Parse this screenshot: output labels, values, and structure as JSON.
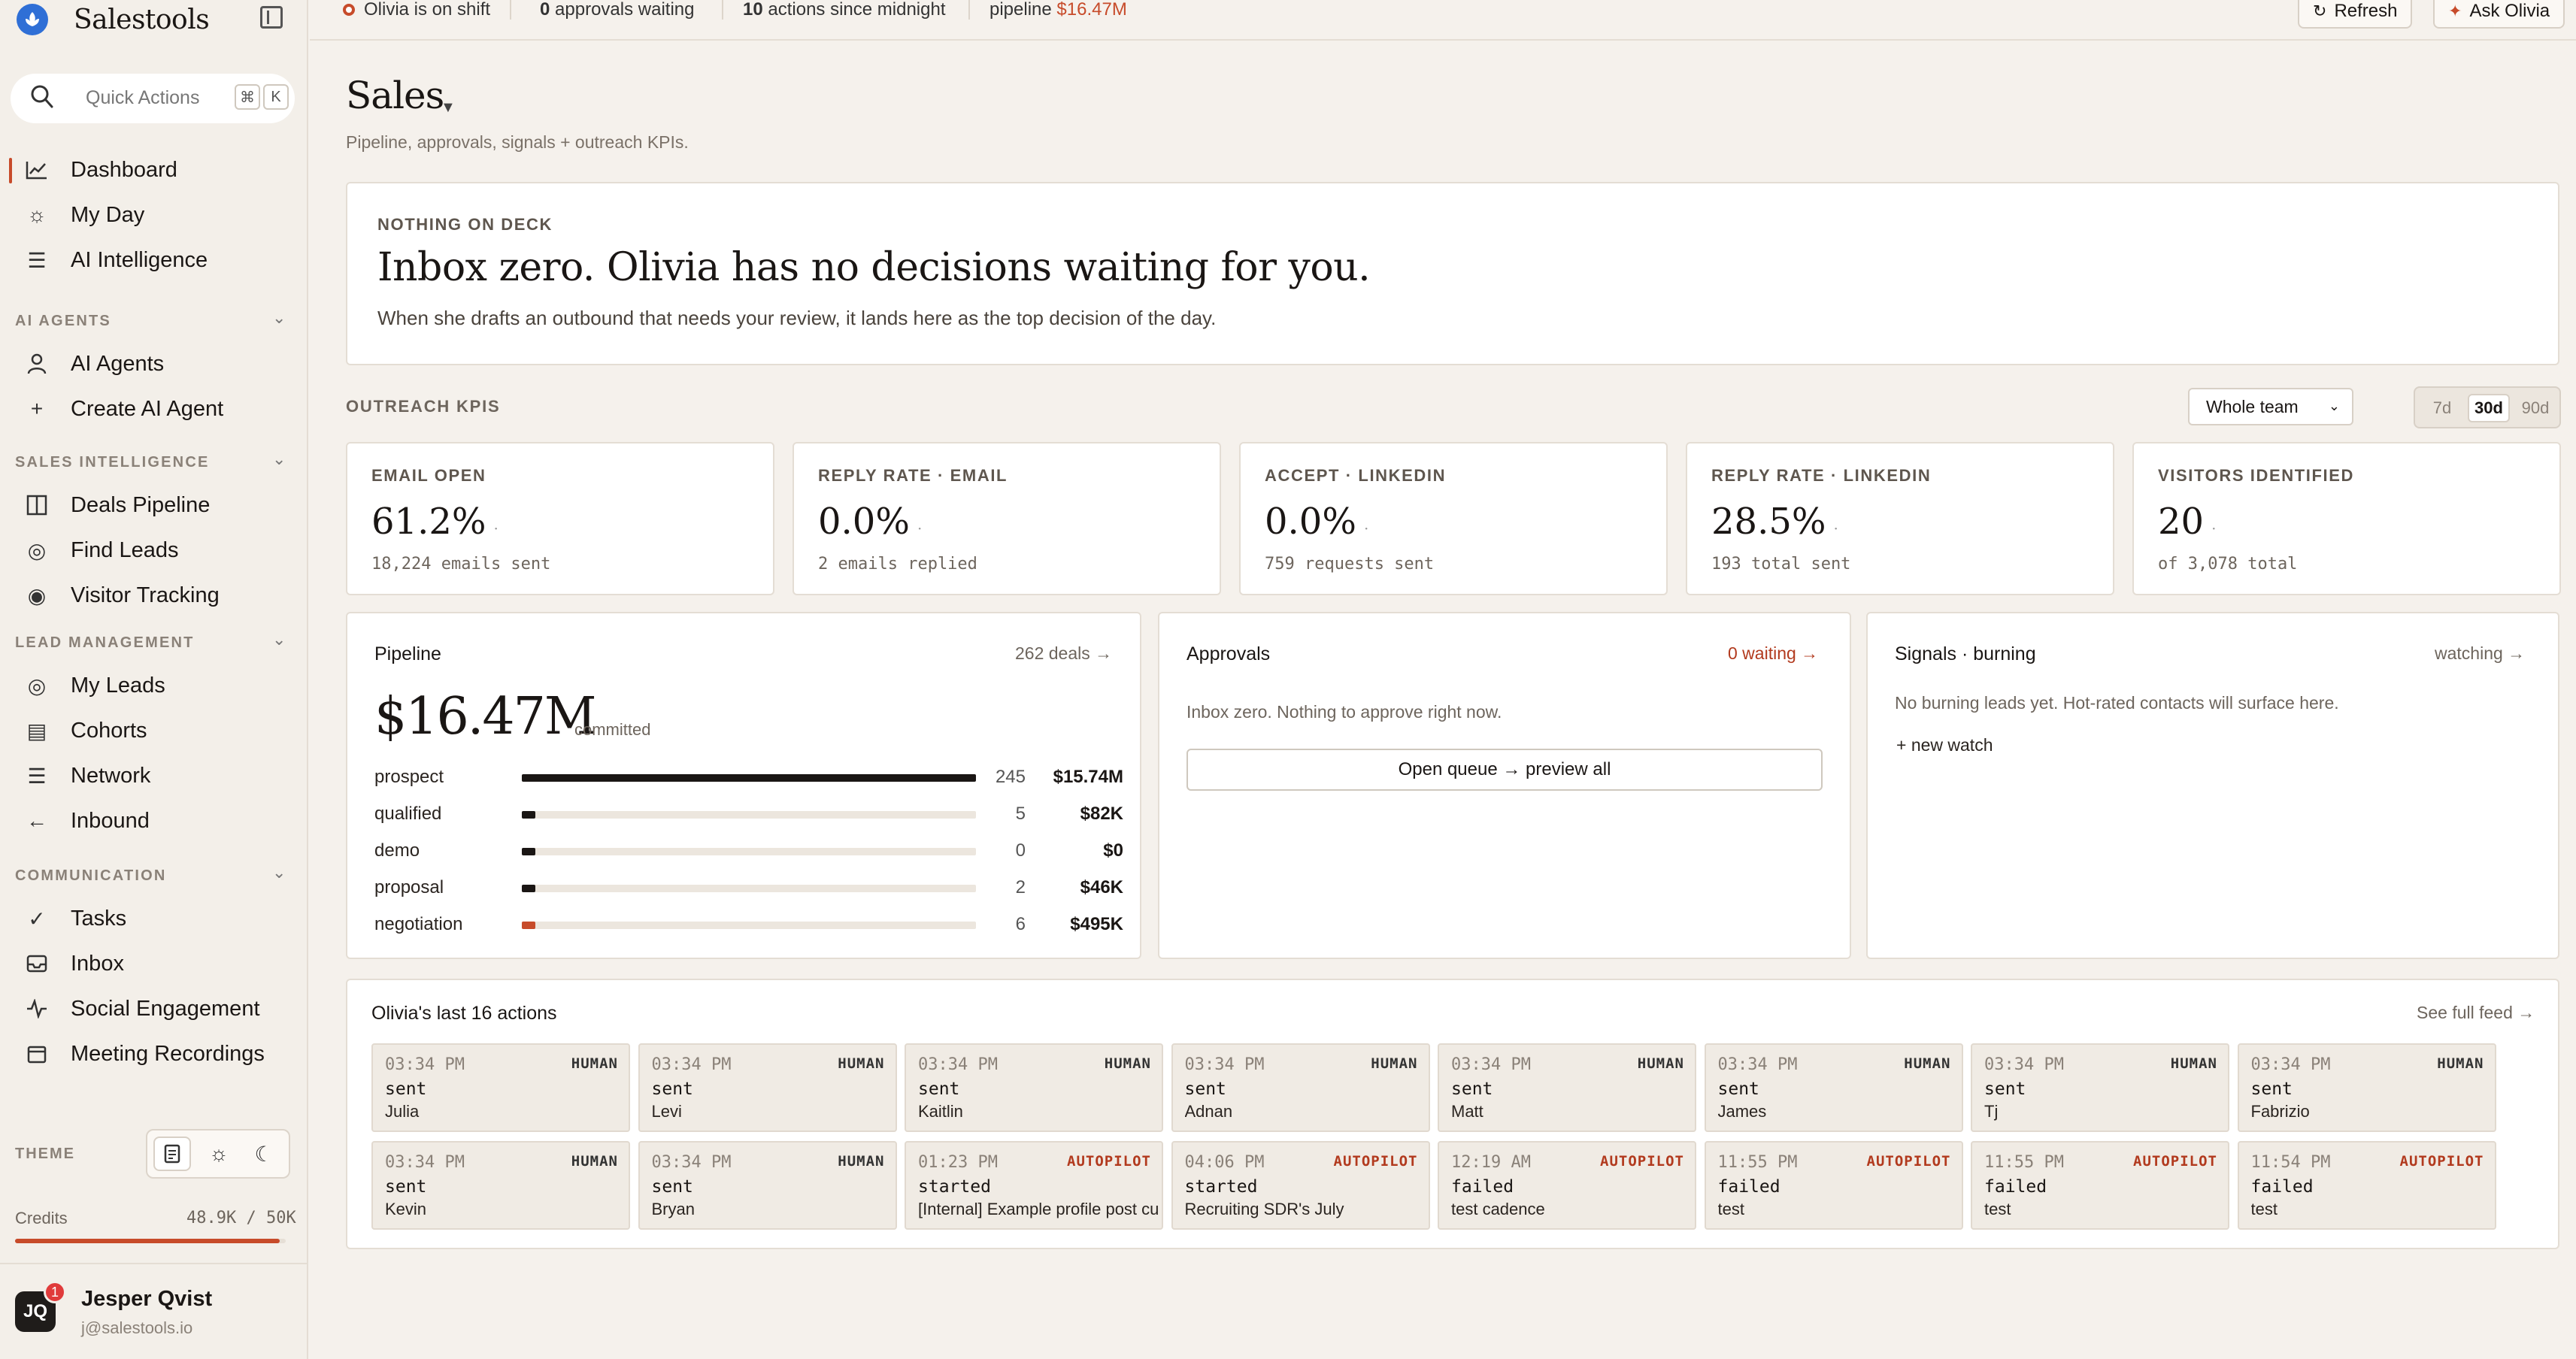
{
  "app": {
    "name": "Salestools"
  },
  "search": {
    "placeholder": "Quick Actions",
    "key1": "⌘",
    "key2": "K"
  },
  "nav": {
    "top": [
      {
        "label": "Dashboard",
        "icon": "chart-line-icon"
      },
      {
        "label": "My Day",
        "icon": "sun-icon"
      },
      {
        "label": "AI Intelligence",
        "icon": "sliders-icon"
      }
    ],
    "sections": [
      {
        "title": "AI AGENTS",
        "items": [
          {
            "label": "AI Agents",
            "icon": "user-icon"
          },
          {
            "label": "Create AI Agent",
            "icon": "plus-icon"
          }
        ]
      },
      {
        "title": "SALES INTELLIGENCE",
        "items": [
          {
            "label": "Deals Pipeline",
            "icon": "columns-icon"
          },
          {
            "label": "Find Leads",
            "icon": "target-icon"
          },
          {
            "label": "Visitor Tracking",
            "icon": "eye-icon"
          }
        ]
      },
      {
        "title": "LEAD MANAGEMENT",
        "items": [
          {
            "label": "My Leads",
            "icon": "target-icon"
          },
          {
            "label": "Cohorts",
            "icon": "list-icon"
          },
          {
            "label": "Network",
            "icon": "sliders-icon"
          },
          {
            "label": "Inbound",
            "icon": "arrow-left-icon"
          }
        ]
      },
      {
        "title": "COMMUNICATION",
        "items": [
          {
            "label": "Tasks",
            "icon": "check-circle-icon"
          },
          {
            "label": "Inbox",
            "icon": "inbox-icon"
          },
          {
            "label": "Social Engagement",
            "icon": "activity-icon"
          },
          {
            "label": "Meeting Recordings",
            "icon": "calendar-icon"
          }
        ]
      }
    ]
  },
  "theme": {
    "label": "THEME"
  },
  "credits": {
    "label": "Credits",
    "value": "48.9K / 50K",
    "fraction": 0.978
  },
  "user": {
    "initials": "JQ",
    "name": "Jesper Qvist",
    "email": "j@salestools.io",
    "notifications": "1"
  },
  "topbar": {
    "status": "Olivia is on shift",
    "approvals_count": "0",
    "approvals_text": "approvals waiting",
    "actions_count": "10",
    "actions_text": "actions since midnight",
    "pipeline_label": "pipeline",
    "pipeline_value": "$16.47M",
    "refresh": "Refresh",
    "ask": "Ask Olivia"
  },
  "page": {
    "title": "Sales",
    "subtitle": "Pipeline, approvals, signals + outreach KPIs."
  },
  "hero": {
    "eyebrow": "NOTHING ON DECK",
    "headline": "Inbox zero. Olivia has no decisions waiting for you.",
    "text": "When she drafts an outbound that needs your review, it lands here as the top decision of the day."
  },
  "outreach": {
    "label": "OUTREACH KPIS",
    "team_select": "Whole team",
    "ranges": [
      "7d",
      "30d",
      "90d"
    ],
    "active_range": "30d",
    "kpis": [
      {
        "label": "EMAIL OPEN",
        "value": "61.2%",
        "sub": "18,224 emails sent"
      },
      {
        "label": "REPLY RATE · EMAIL",
        "value": "0.0%",
        "sub": "2 emails replied"
      },
      {
        "label": "ACCEPT · LINKEDIN",
        "value": "0.0%",
        "sub": "759 requests sent"
      },
      {
        "label": "REPLY RATE · LINKEDIN",
        "value": "28.5%",
        "sub": "193 total sent"
      },
      {
        "label": "VISITORS IDENTIFIED",
        "value": "20",
        "sub": "of 3,078 total"
      }
    ]
  },
  "pipeline": {
    "title": "Pipeline",
    "link": "262 deals →",
    "total": "$16.47M",
    "total_label": "committed",
    "stages": [
      {
        "name": "prospect",
        "count": "245",
        "amount": "$15.74M",
        "fill": 1.0,
        "color": "#1a1614"
      },
      {
        "name": "qualified",
        "count": "5",
        "amount": "$82K",
        "fill": 0.03,
        "color": "#1a1614"
      },
      {
        "name": "demo",
        "count": "0",
        "amount": "$0",
        "fill": 0.03,
        "color": "#1a1614"
      },
      {
        "name": "proposal",
        "count": "2",
        "amount": "$46K",
        "fill": 0.03,
        "color": "#1a1614"
      },
      {
        "name": "negotiation",
        "count": "6",
        "amount": "$495K",
        "fill": 0.03,
        "color": "#c74b2a"
      }
    ]
  },
  "approvals": {
    "title": "Approvals",
    "link": "0 waiting →",
    "text": "Inbox zero. Nothing to approve right now.",
    "button": "Open queue → preview all"
  },
  "signals": {
    "title": "Signals · burning",
    "link": "watching →",
    "text": "No burning leads yet. Hot-rated contacts will surface here.",
    "new_watch": "+ new watch"
  },
  "actions": {
    "title": "Olivia's last 16 actions",
    "link": "See full feed →",
    "items": [
      {
        "time": "03:34 PM",
        "badge": "HUMAN",
        "verb": "sent",
        "target": "Julia"
      },
      {
        "time": "03:34 PM",
        "badge": "HUMAN",
        "verb": "sent",
        "target": "Levi"
      },
      {
        "time": "03:34 PM",
        "badge": "HUMAN",
        "verb": "sent",
        "target": "Kaitlin"
      },
      {
        "time": "03:34 PM",
        "badge": "HUMAN",
        "verb": "sent",
        "target": "Adnan"
      },
      {
        "time": "03:34 PM",
        "badge": "HUMAN",
        "verb": "sent",
        "target": "Matt"
      },
      {
        "time": "03:34 PM",
        "badge": "HUMAN",
        "verb": "sent",
        "target": "James"
      },
      {
        "time": "03:34 PM",
        "badge": "HUMAN",
        "verb": "sent",
        "target": "Tj"
      },
      {
        "time": "03:34 PM",
        "badge": "HUMAN",
        "verb": "sent",
        "target": "Fabrizio"
      },
      {
        "time": "03:34 PM",
        "badge": "HUMAN",
        "verb": "sent",
        "target": "Kevin"
      },
      {
        "time": "03:34 PM",
        "badge": "HUMAN",
        "verb": "sent",
        "target": "Bryan"
      },
      {
        "time": "01:23 PM",
        "badge": "AUTOPILOT",
        "verb": "started",
        "target": "[Internal] Example profile post curation"
      },
      {
        "time": "04:06 PM",
        "badge": "AUTOPILOT",
        "verb": "started",
        "target": "Recruiting SDR's July"
      },
      {
        "time": "12:19 AM",
        "badge": "AUTOPILOT",
        "verb": "failed",
        "target": "test cadence"
      },
      {
        "time": "11:55 PM",
        "badge": "AUTOPILOT",
        "verb": "failed",
        "target": "test"
      },
      {
        "time": "11:55 PM",
        "badge": "AUTOPILOT",
        "verb": "failed",
        "target": "test"
      },
      {
        "time": "11:54 PM",
        "badge": "AUTOPILOT",
        "verb": "failed",
        "target": "test"
      }
    ]
  },
  "colors": {
    "accent": "#c74b2a",
    "brand": "#2f6fd6",
    "background": "#f5f1ec"
  }
}
